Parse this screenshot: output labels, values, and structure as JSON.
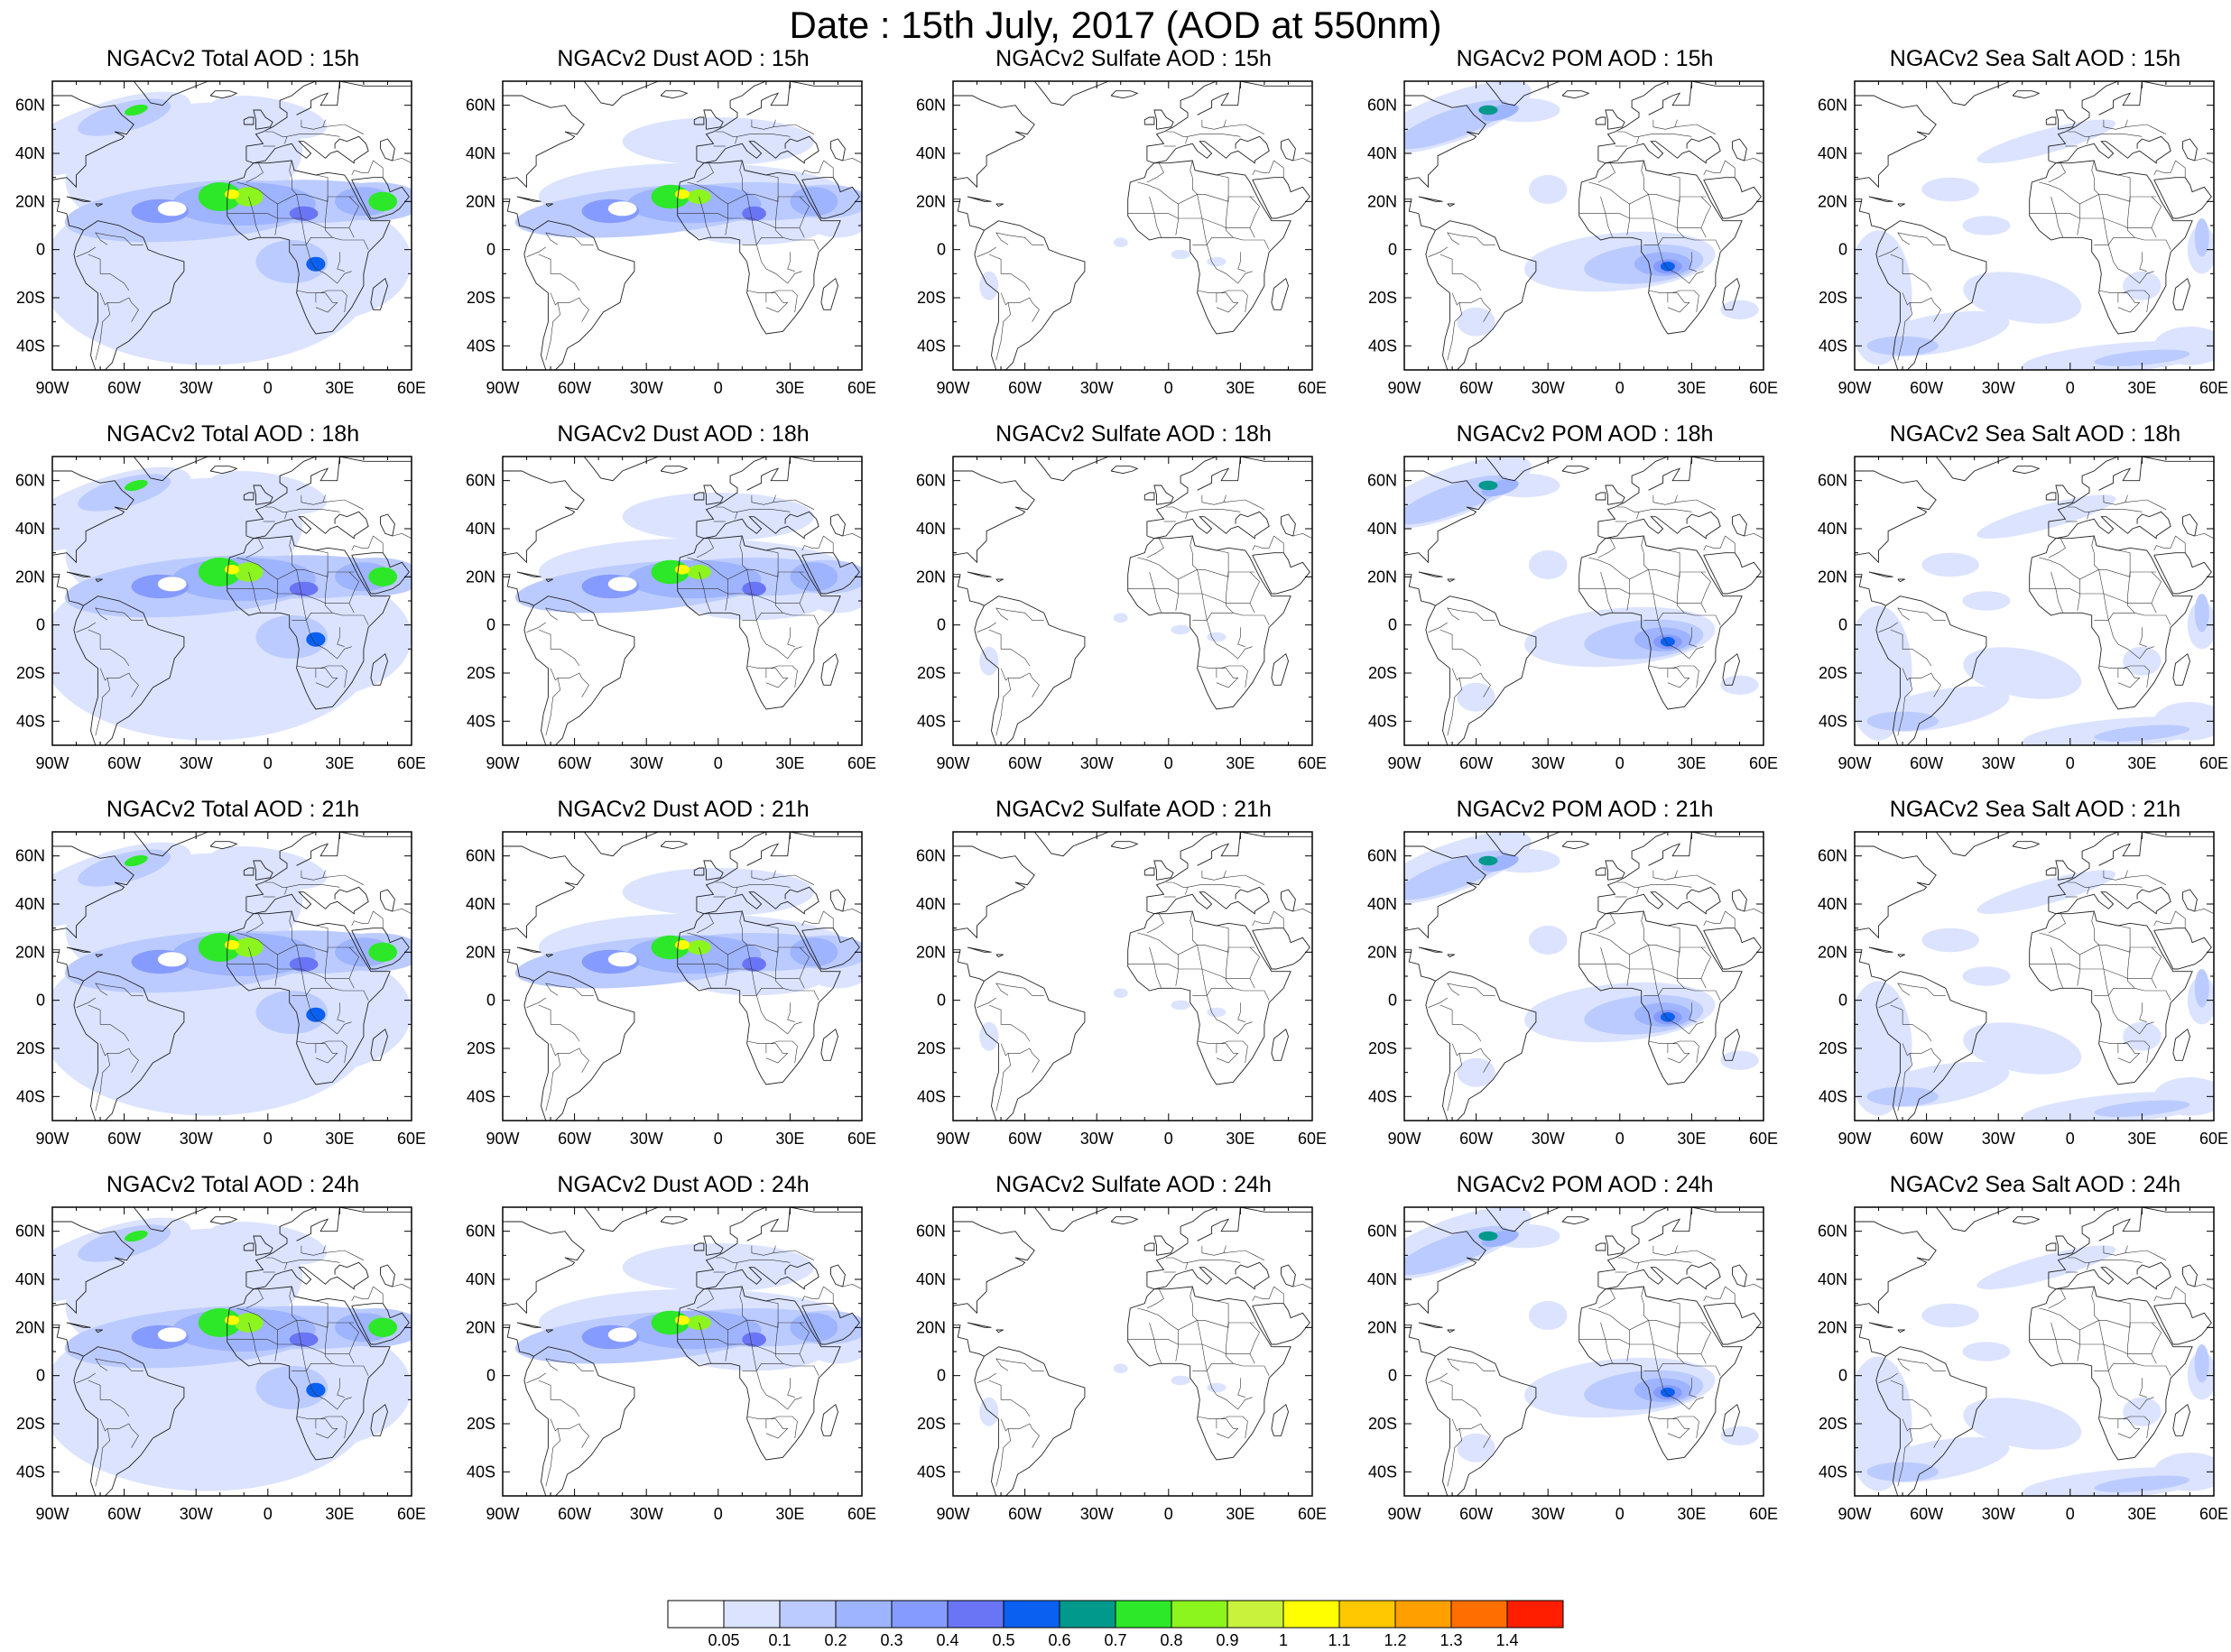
{
  "page": {
    "title": "Date : 15th July, 2017 (AOD at 550nm)"
  },
  "axes": {
    "lon_ticks": [
      "90W",
      "60W",
      "30W",
      "0",
      "30E",
      "60E"
    ],
    "lat_ticks": [
      "60N",
      "40N",
      "20N",
      "0",
      "20S",
      "40S"
    ],
    "lon_values": [
      -90,
      -60,
      -30,
      0,
      30,
      60
    ],
    "lat_values": [
      60,
      40,
      20,
      0,
      -20,
      -40
    ],
    "lon_range": [
      -90,
      60
    ],
    "lat_range": [
      -50,
      70
    ]
  },
  "panels": [
    {
      "title": "NGACv2 Total AOD : 15h",
      "type": "total"
    },
    {
      "title": "NGACv2 Dust AOD : 15h",
      "type": "dust"
    },
    {
      "title": "NGACv2 Sulfate AOD : 15h",
      "type": "sulfate"
    },
    {
      "title": "NGACv2 POM AOD : 15h",
      "type": "pom"
    },
    {
      "title": "NGACv2 Sea Salt AOD : 15h",
      "type": "seasalt"
    },
    {
      "title": "NGACv2 Total AOD : 18h",
      "type": "total"
    },
    {
      "title": "NGACv2 Dust AOD : 18h",
      "type": "dust"
    },
    {
      "title": "NGACv2 Sulfate AOD : 18h",
      "type": "sulfate"
    },
    {
      "title": "NGACv2 POM AOD : 18h",
      "type": "pom"
    },
    {
      "title": "NGACv2 Sea Salt AOD : 18h",
      "type": "seasalt"
    },
    {
      "title": "NGACv2 Total AOD : 21h",
      "type": "total"
    },
    {
      "title": "NGACv2 Dust AOD : 21h",
      "type": "dust"
    },
    {
      "title": "NGACv2 Sulfate AOD : 21h",
      "type": "sulfate"
    },
    {
      "title": "NGACv2 POM AOD : 21h",
      "type": "pom"
    },
    {
      "title": "NGACv2 Sea Salt AOD : 21h",
      "type": "seasalt"
    },
    {
      "title": "NGACv2 Total AOD : 24h",
      "type": "total"
    },
    {
      "title": "NGACv2 Dust AOD : 24h",
      "type": "dust"
    },
    {
      "title": "NGACv2 Sulfate AOD : 24h",
      "type": "sulfate"
    },
    {
      "title": "NGACv2 POM AOD : 24h",
      "type": "pom"
    },
    {
      "title": "NGACv2 Sea Salt  AOD : 24h",
      "type": "seasalt"
    }
  ],
  "colorbar": {
    "labels": [
      "0.05",
      "0.1",
      "0.2",
      "0.3",
      "0.4",
      "0.5",
      "0.6",
      "0.7",
      "0.8",
      "0.9",
      "1",
      "1.1",
      "1.2",
      "1.3",
      "1.4"
    ],
    "colors": [
      "#ffffff",
      "#dbe3ff",
      "#bccbff",
      "#9eb4ff",
      "#869bff",
      "#6a75f5",
      "#0a60f0",
      "#00998c",
      "#2ce829",
      "#8cf51e",
      "#c8f23c",
      "#ffff00",
      "#ffc800",
      "#ff9f00",
      "#ff6e00",
      "#ff1e00"
    ]
  }
}
